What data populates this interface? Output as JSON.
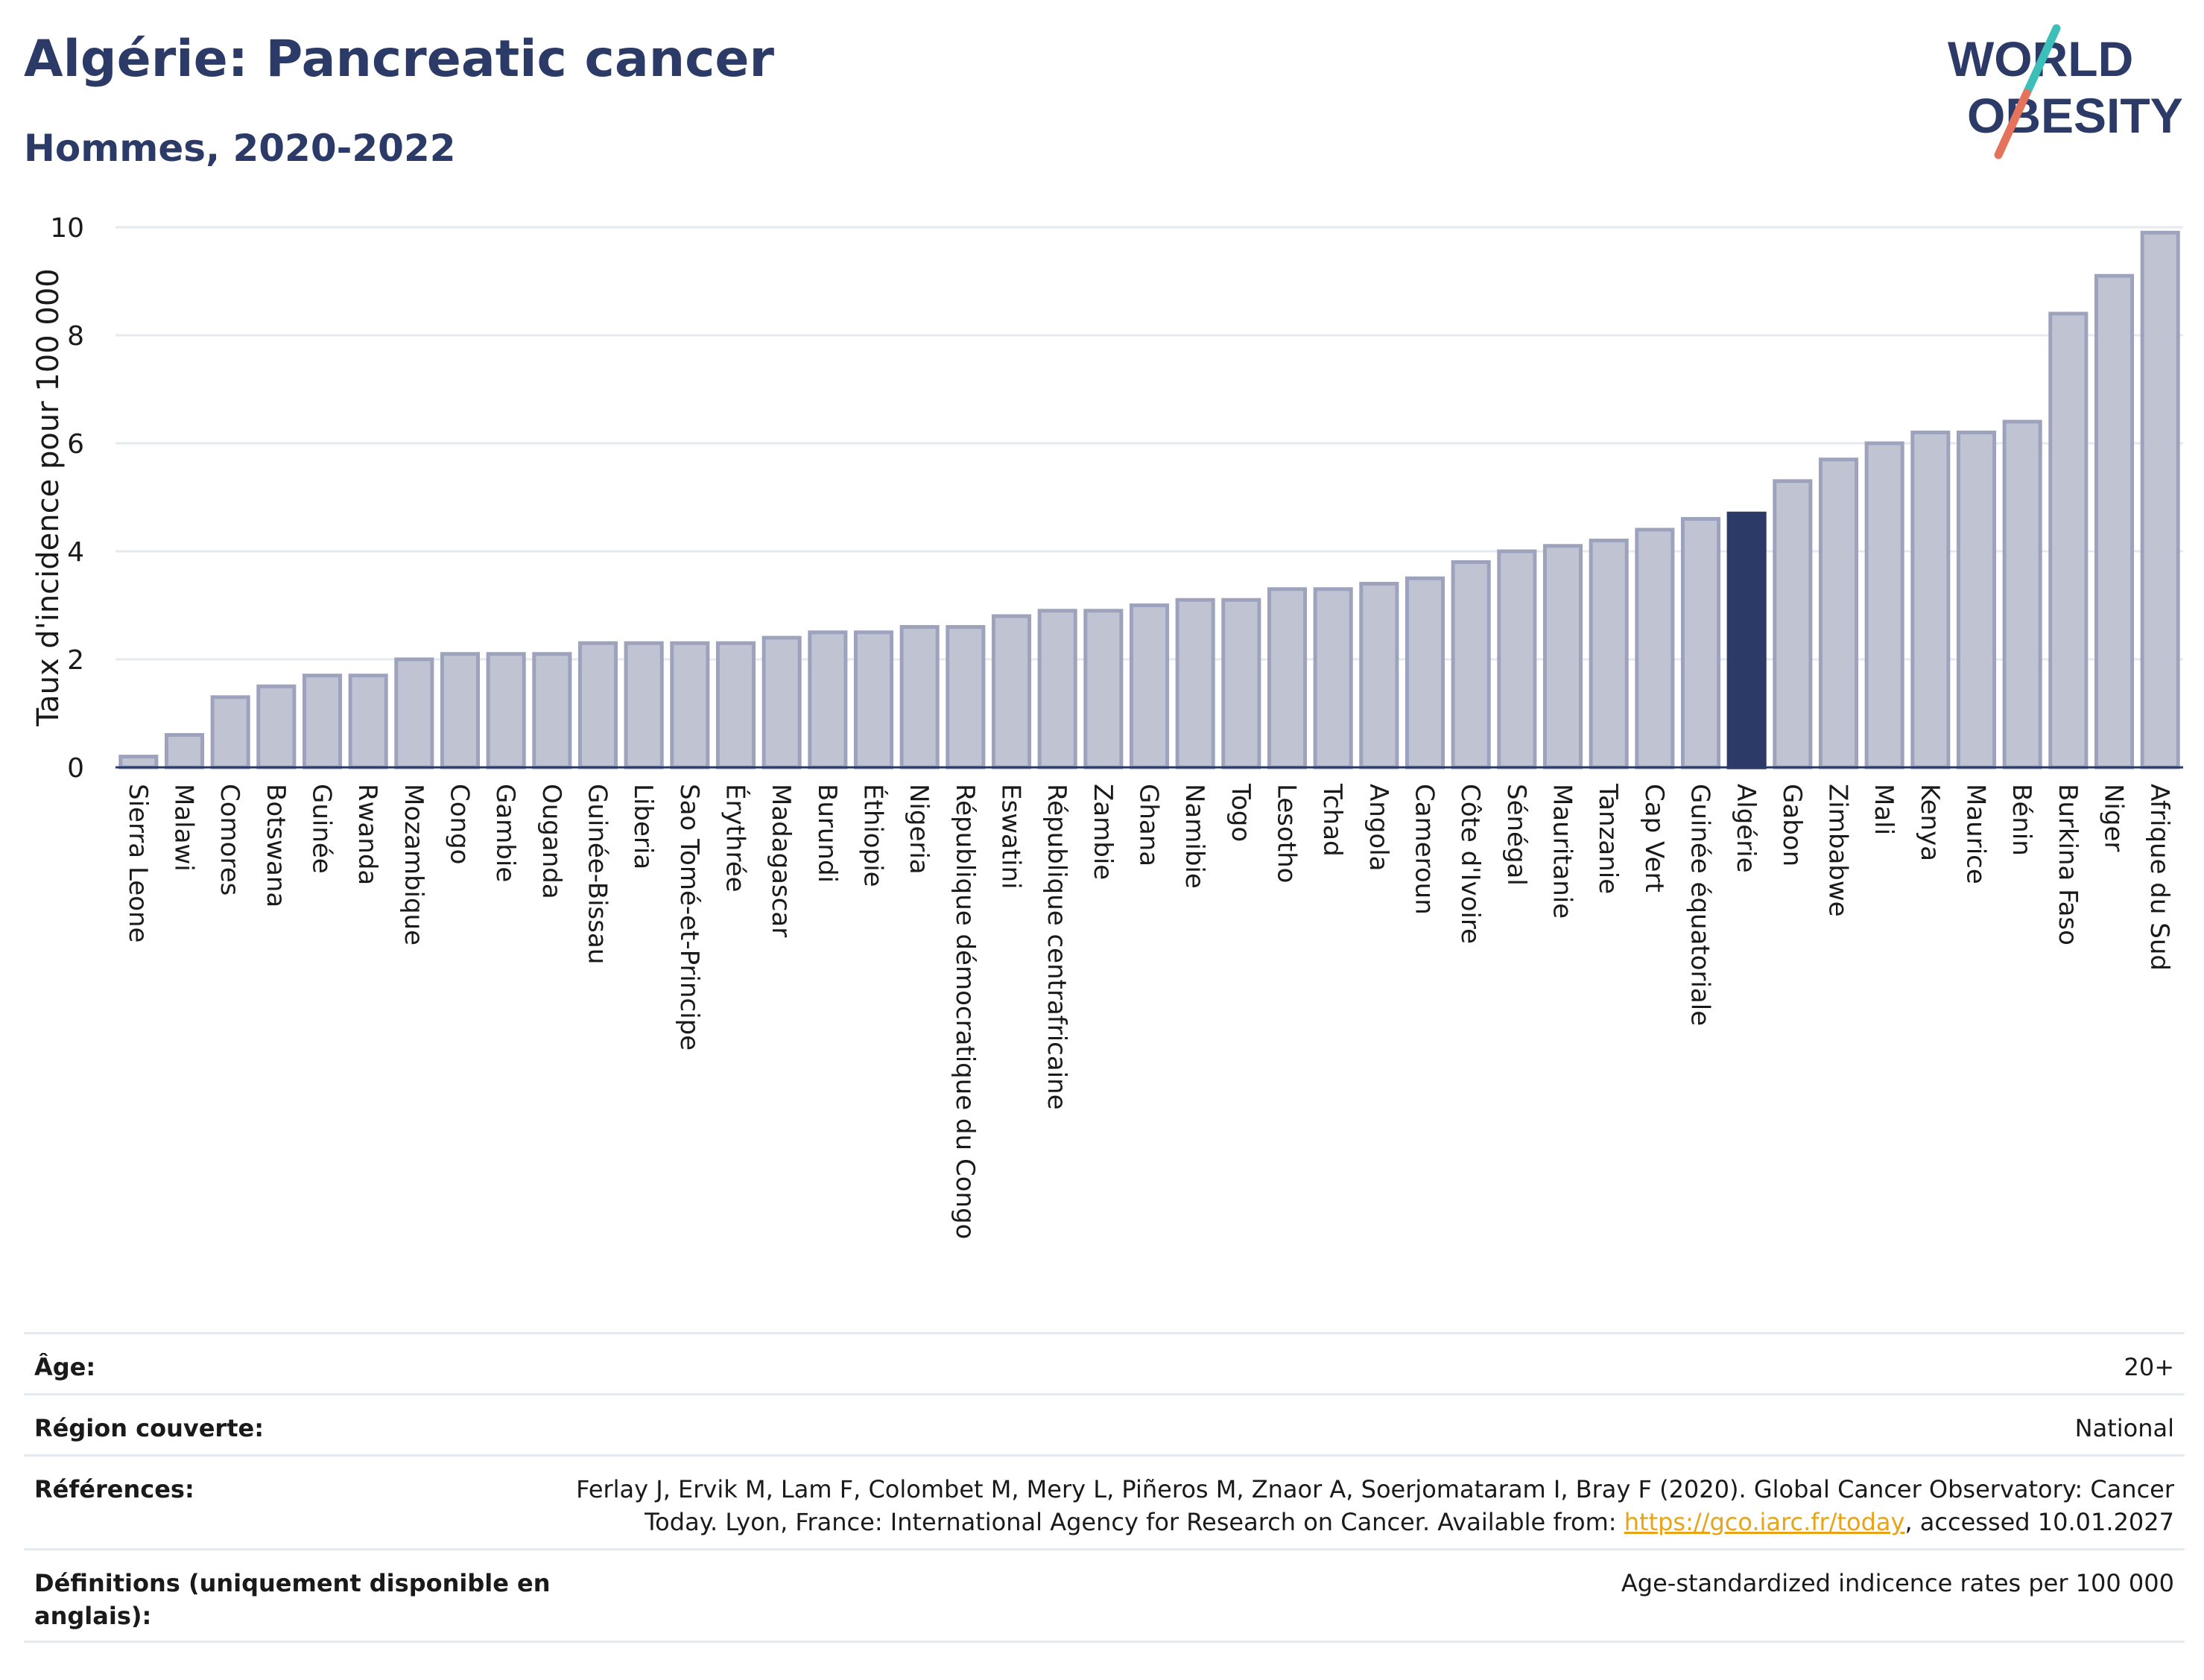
{
  "header": {
    "title": "Algérie: Pancreatic cancer",
    "subtitle": "Hommes, 2020-2022"
  },
  "logo": {
    "line1": "WORLD",
    "line2": "OBESITY",
    "colors": {
      "text": "#2b3a67",
      "slash_top": "#3bbfb8",
      "slash_bottom": "#e5735c"
    }
  },
  "chart_data": {
    "type": "bar",
    "ylabel": "Taux d'incidence pour 100 000",
    "ylim": [
      0,
      10
    ],
    "yticks": [
      0,
      2,
      4,
      6,
      8,
      10
    ],
    "grid": true,
    "highlight": "Algérie",
    "colors": {
      "bar": "#c0c4d2",
      "bar_edge": "#9ea3bd",
      "highlight": "#2b3a67",
      "grid": "#e5e9f0"
    },
    "categories": [
      "Sierra Leone",
      "Malawi",
      "Comores",
      "Botswana",
      "Guinée",
      "Rwanda",
      "Mozambique",
      "Congo",
      "Gambie",
      "Ouganda",
      "Guinée-Bissau",
      "Liberia",
      "Sao Tomé-et-Principe",
      "Érythrée",
      "Madagascar",
      "Burundi",
      "Éthiopie",
      "Nigeria",
      "République démocratique du Congo",
      "Eswatini",
      "République centrafricaine",
      "Zambie",
      "Ghana",
      "Namibie",
      "Togo",
      "Lesotho",
      "Tchad",
      "Angola",
      "Cameroun",
      "Côte d'Ivoire",
      "Sénégal",
      "Mauritanie",
      "Tanzanie",
      "Cap Vert",
      "Guinée équatoriale",
      "Algérie",
      "Gabon",
      "Zimbabwe",
      "Mali",
      "Kenya",
      "Maurice",
      "Bénin",
      "Burkina Faso",
      "Niger",
      "Afrique du Sud"
    ],
    "values": [
      0.2,
      0.6,
      1.3,
      1.5,
      1.7,
      1.7,
      2.0,
      2.1,
      2.1,
      2.1,
      2.3,
      2.3,
      2.3,
      2.3,
      2.4,
      2.5,
      2.5,
      2.6,
      2.6,
      2.8,
      2.9,
      2.9,
      3.0,
      3.1,
      3.1,
      3.3,
      3.3,
      3.4,
      3.5,
      3.8,
      4.0,
      4.1,
      4.2,
      4.4,
      4.6,
      4.7,
      5.3,
      5.7,
      6.0,
      6.2,
      6.2,
      6.4,
      8.4,
      9.1,
      9.9
    ]
  },
  "meta": [
    {
      "label": "Âge:",
      "value": "20+"
    },
    {
      "label": "Région couverte:",
      "value": "National"
    },
    {
      "label": "Références:",
      "value_pre": "Ferlay J, Ervik M, Lam F, Colombet M, Mery L, Piñeros M, Znaor A, Soerjomataram I, Bray F (2020). Global Cancer Observatory: Cancer Today. Lyon, France: International Agency for Research on Cancer. Available from: ",
      "link": "https://gco.iarc.fr/today",
      "value_post": ", accessed 10.01.2027"
    },
    {
      "label": "Définitions (uniquement disponible en anglais):",
      "value": "Age-standardized indicence rates per 100 000"
    }
  ]
}
